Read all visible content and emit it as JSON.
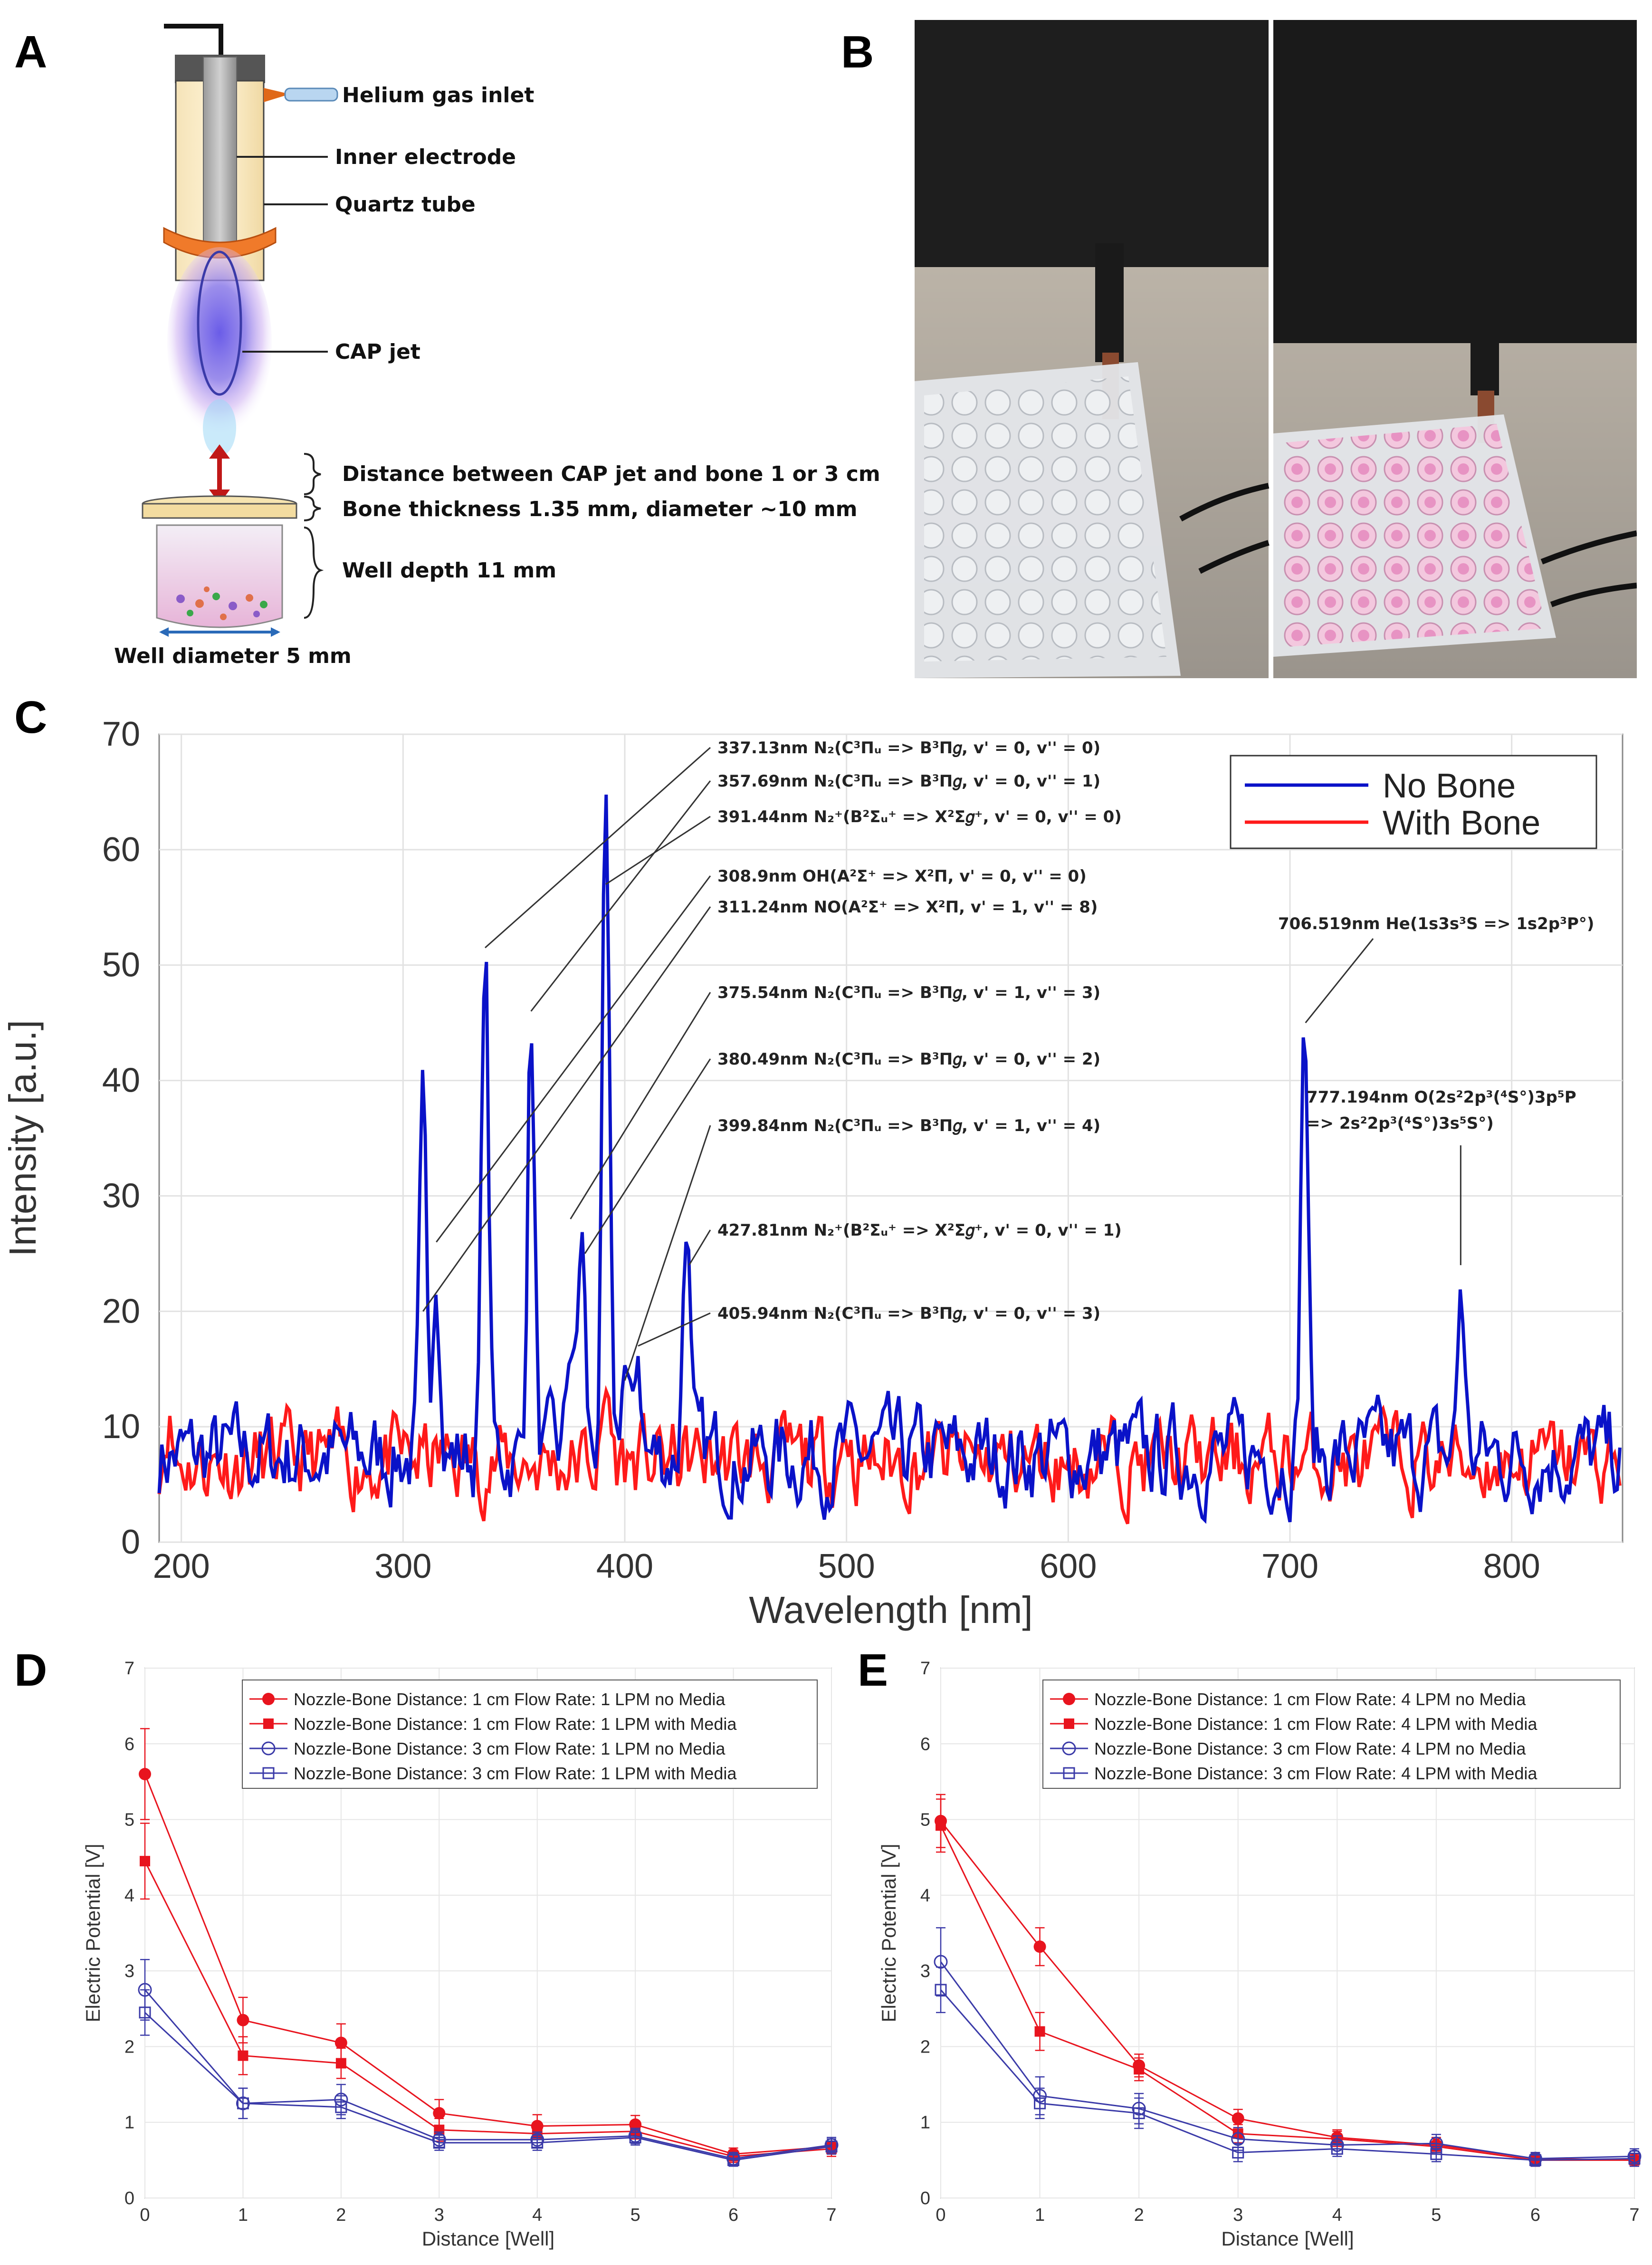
{
  "panel_labels": {
    "a": "A",
    "b": "B",
    "c": "C",
    "d": "D",
    "e": "E"
  },
  "panel_a": {
    "labels": [
      "Helium gas inlet",
      "Inner electrode",
      "Quartz tube",
      "CAP jet",
      "Distance between CAP jet and bone 1 or 3 cm",
      "Bone thickness 1.35 mm, diameter ~10 mm",
      "Well depth 11 mm",
      "Well diameter 5 mm"
    ]
  },
  "colors": {
    "no_bone": "#0a12c8",
    "with_bone": "#ff1a1a",
    "red_series": "#e8141e",
    "blue_series": "#3a3aa8"
  },
  "chart_data": [
    {
      "id": "C",
      "type": "line",
      "xlabel": "Wavelength [nm]",
      "ylabel": "Intensity [a.u.]",
      "xlim": [
        190,
        850
      ],
      "ylim": [
        0,
        70
      ],
      "xticks": [
        200,
        300,
        400,
        500,
        600,
        700,
        800
      ],
      "yticks": [
        0,
        10,
        20,
        30,
        40,
        50,
        60,
        70
      ],
      "grid": true,
      "legend_position": "top-right",
      "series": [
        {
          "name": "No Bone",
          "color": "#0a12c8",
          "baseline": 7.5,
          "peaks": [
            {
              "x": 309,
              "y": 35.8
            },
            {
              "x": 315,
              "y": 26
            },
            {
              "x": 337,
              "y": 51.5
            },
            {
              "x": 357.7,
              "y": 46
            },
            {
              "x": 375.5,
              "y": 17.5
            },
            {
              "x": 380.5,
              "y": 26.5
            },
            {
              "x": 391.4,
              "y": 62
            },
            {
              "x": 399.8,
              "y": 15.5
            },
            {
              "x": 405.9,
              "y": 17
            },
            {
              "x": 427.8,
              "y": 29.3
            },
            {
              "x": 706.5,
              "y": 46.5
            },
            {
              "x": 777.2,
              "y": 22.5
            }
          ]
        },
        {
          "name": "With Bone",
          "color": "#ff1a1a",
          "baseline": 7,
          "peaks": [
            {
              "x": 194,
              "y": 11.5
            },
            {
              "x": 392,
              "y": 13
            },
            {
              "x": 500,
              "y": 10.5
            }
          ]
        }
      ],
      "annotations": [
        {
          "text": "337.13nm N₂(C³Πᵤ => B³Π𝑔, v' = 0, v'' = 0)",
          "peak_x": 337,
          "peak_y": 51.5
        },
        {
          "text": "357.69nm N₂(C³Πᵤ => B³Π𝑔, v' = 0, v'' = 1)",
          "peak_x": 357.7,
          "peak_y": 46
        },
        {
          "text": "391.44nm N₂⁺(B²Σᵤ⁺ => X²Σ𝑔⁺, v' = 0, v'' = 0)",
          "peak_x": 391.4,
          "peak_y": 57
        },
        {
          "text": "308.9nm OH(A²Σ⁺ => X²Π, v' = 0, v'' = 0)",
          "peak_x": 315,
          "peak_y": 26
        },
        {
          "text": "311.24nm NO(A²Σ⁺ => X²Π, v' = 1, v'' = 8)",
          "peak_x": 309,
          "peak_y": 20
        },
        {
          "text": "375.54nm N₂(C³Πᵤ => B³Π𝑔, v' = 1, v'' = 3)",
          "peak_x": 375.5,
          "peak_y": 28
        },
        {
          "text": "380.49nm N₂(C³Πᵤ => B³Π𝑔, v' = 0, v'' = 2)",
          "peak_x": 382,
          "peak_y": 25
        },
        {
          "text": "399.84nm N₂(C³Πᵤ => B³Π𝑔, v' = 1, v'' = 4)",
          "peak_x": 400,
          "peak_y": 14
        },
        {
          "text": "427.81nm N₂⁺(B²Σᵤ⁺ => X²Σ𝑔⁺, v' = 0, v'' = 1)",
          "peak_x": 429,
          "peak_y": 24
        },
        {
          "text": "405.94nm N₂(C³Πᵤ => B³Π𝑔, v' = 0, v'' = 3)",
          "peak_x": 406,
          "peak_y": 17
        },
        {
          "text": "706.519nm He(1s3s³S => 1s2p³P°)",
          "peak_x": 707,
          "peak_y": 45
        },
        {
          "text": "777.194nm O(2s²2p³(⁴S°)3p⁵P",
          "peak_x": 777,
          "peak_y": 24
        },
        {
          "text": "=> 2s²2p³(⁴S°)3s⁵S°)",
          "peak_x": null,
          "peak_y": null
        }
      ]
    },
    {
      "id": "D",
      "type": "line",
      "xlabel": "Distance [Well]",
      "ylabel": "Electric Potential [V]",
      "xlim": [
        0,
        7
      ],
      "ylim": [
        0,
        7
      ],
      "xticks": [
        0,
        1,
        2,
        3,
        4,
        5,
        6,
        7
      ],
      "yticks": [
        0,
        1,
        2,
        3,
        4,
        5,
        6,
        7
      ],
      "grid": true,
      "legend_position": "top-right",
      "x": [
        0,
        1,
        2,
        3,
        4,
        5,
        6,
        7
      ],
      "series": [
        {
          "name": "Nozzle-Bone Distance: 1 cm Flow Rate: 1 LPM no Media",
          "color": "#e8141e",
          "marker": "filled-circle",
          "values": [
            5.6,
            2.35,
            2.05,
            1.12,
            0.95,
            0.97,
            0.58,
            0.68
          ],
          "err": [
            0.6,
            0.3,
            0.25,
            0.18,
            0.15,
            0.12,
            0.08,
            0.1
          ]
        },
        {
          "name": "Nozzle-Bone Distance: 1 cm Flow Rate: 1 LPM with Media",
          "color": "#e8141e",
          "marker": "filled-square",
          "values": [
            4.45,
            1.88,
            1.78,
            0.9,
            0.85,
            0.88,
            0.55,
            0.65
          ],
          "err": [
            0.5,
            0.25,
            0.2,
            0.15,
            0.12,
            0.1,
            0.08,
            0.1
          ]
        },
        {
          "name": "Nozzle-Bone Distance: 3 cm Flow Rate: 1 LPM no Media",
          "color": "#3a3aa8",
          "marker": "open-circle",
          "values": [
            2.75,
            1.25,
            1.3,
            0.77,
            0.77,
            0.82,
            0.52,
            0.7
          ],
          "err": [
            0.4,
            0.2,
            0.2,
            0.1,
            0.1,
            0.1,
            0.08,
            0.1
          ]
        },
        {
          "name": "Nozzle-Bone Distance: 3 cm Flow Rate: 1 LPM with Media",
          "color": "#3a3aa8",
          "marker": "open-square",
          "values": [
            2.45,
            1.25,
            1.2,
            0.73,
            0.73,
            0.8,
            0.5,
            0.68
          ],
          "err": [
            0.3,
            0.2,
            0.15,
            0.1,
            0.1,
            0.1,
            0.08,
            0.1
          ]
        }
      ]
    },
    {
      "id": "E",
      "type": "line",
      "xlabel": "Distance [Well]",
      "ylabel": "Electric Potential [V]",
      "xlim": [
        0,
        7
      ],
      "ylim": [
        0,
        7
      ],
      "xticks": [
        0,
        1,
        2,
        3,
        4,
        5,
        6,
        7
      ],
      "yticks": [
        0,
        1,
        2,
        3,
        4,
        5,
        6,
        7
      ],
      "grid": true,
      "legend_position": "top-right",
      "x": [
        0,
        1,
        2,
        3,
        4,
        5,
        6,
        7
      ],
      "series": [
        {
          "name": "Nozzle-Bone Distance: 1 cm Flow Rate: 4 LPM no Media",
          "color": "#e8141e",
          "marker": "filled-circle",
          "values": [
            4.98,
            3.32,
            1.75,
            1.05,
            0.8,
            0.7,
            0.52,
            0.5
          ],
          "err": [
            0.35,
            0.25,
            0.15,
            0.12,
            0.1,
            0.1,
            0.08,
            0.08
          ]
        },
        {
          "name": "Nozzle-Bone Distance: 1 cm Flow Rate: 4 LPM with Media",
          "color": "#e8141e",
          "marker": "filled-square",
          "values": [
            4.92,
            2.2,
            1.7,
            0.85,
            0.78,
            0.68,
            0.5,
            0.5
          ],
          "err": [
            0.35,
            0.25,
            0.15,
            0.12,
            0.1,
            0.1,
            0.08,
            0.08
          ]
        },
        {
          "name": "Nozzle-Bone Distance: 3 cm Flow Rate: 4 LPM no Media",
          "color": "#3a3aa8",
          "marker": "open-circle",
          "values": [
            3.12,
            1.35,
            1.18,
            0.78,
            0.7,
            0.72,
            0.52,
            0.55
          ],
          "err": [
            0.45,
            0.25,
            0.2,
            0.15,
            0.12,
            0.12,
            0.08,
            0.1
          ]
        },
        {
          "name": "Nozzle-Bone Distance: 3 cm Flow Rate: 4 LPM with Media",
          "color": "#3a3aa8",
          "marker": "open-square",
          "values": [
            2.75,
            1.25,
            1.12,
            0.6,
            0.65,
            0.58,
            0.5,
            0.52
          ],
          "err": [
            0.3,
            0.2,
            0.2,
            0.12,
            0.1,
            0.1,
            0.08,
            0.1
          ]
        }
      ]
    }
  ]
}
